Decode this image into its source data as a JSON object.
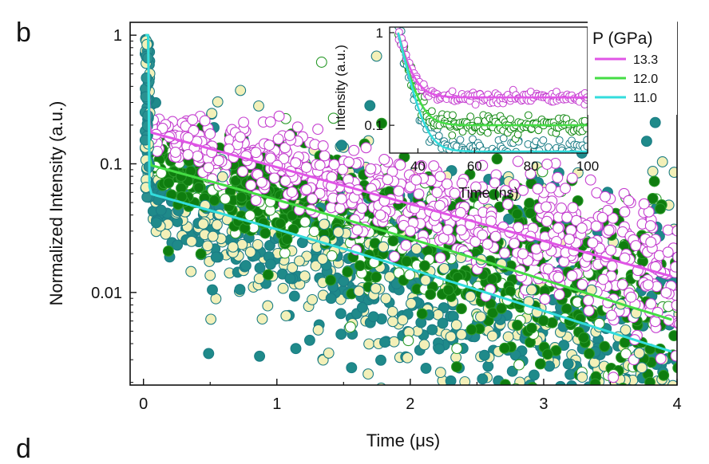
{
  "panel_labels": {
    "top": "b",
    "bottom": "d"
  },
  "colors": {
    "magenta_line": "#e055e6",
    "magenta_marker": "#c53fd0",
    "green_line": "#44dd44",
    "green_marker": "#138a13",
    "cyan_line": "#33dddd",
    "cyan_marker_edge": "#1b7d85",
    "cyan_marker_fill": "#f3f0b8",
    "teal_fill": "#1f8a8a"
  },
  "chart_data": [
    {
      "type": "scatter",
      "id": "main",
      "xlabel": "Time (μs)",
      "ylabel": "Normalized Intensity (a.u.)",
      "xlim": [
        -0.1,
        4
      ],
      "ylim_log10": [
        -2.72,
        0.1
      ],
      "x_ticks": [
        0,
        1,
        2,
        3,
        4
      ],
      "x_tick_labels": [
        "0",
        "1",
        "2",
        "3",
        "4"
      ],
      "y_ticks": [
        1,
        0.1,
        0.01
      ],
      "y_tick_labels": [
        "1",
        "0.1",
        "0.01"
      ],
      "series": [
        {
          "name": "13.3",
          "peak_t": 0.03,
          "plateau": 0.19,
          "tau": 1.5,
          "fit_x": [
            0.06,
            4.0
          ],
          "fit_y": [
            0.175,
            0.013
          ]
        },
        {
          "name": "12.0",
          "peak_t": 0.03,
          "plateau": 0.105,
          "tau": 1.43,
          "fit_x": [
            0.06,
            4.0
          ],
          "fit_y": [
            0.097,
            0.0062
          ]
        },
        {
          "name": "11.0",
          "peak_t": 0.03,
          "plateau": 0.062,
          "tau": 1.4,
          "fit_x": [
            0.06,
            4.0
          ],
          "fit_y": [
            0.058,
            0.0035
          ]
        }
      ]
    },
    {
      "type": "scatter",
      "id": "inset",
      "xlabel": "Time (ns)",
      "ylabel": "Intensity (a.u.)",
      "xlim": [
        30,
        100
      ],
      "ylim_log10": [
        -1.3,
        0.06
      ],
      "x_ticks": [
        40,
        60,
        80,
        100
      ],
      "x_tick_labels": [
        "40",
        "60",
        "80",
        "100"
      ],
      "y_ticks": [
        1,
        0.1
      ],
      "y_tick_labels": [
        "1",
        "0.1"
      ],
      "series": [
        {
          "name": "13.3",
          "plateau": 0.2,
          "peak_t": 33
        },
        {
          "name": "12.0",
          "plateau": 0.1,
          "peak_t": 33
        },
        {
          "name": "11.0",
          "plateau": 0.052,
          "peak_t": 33
        }
      ]
    }
  ],
  "legend": {
    "title": "P (GPa)",
    "entries": [
      "13.3",
      "12.0",
      "11.0"
    ]
  }
}
